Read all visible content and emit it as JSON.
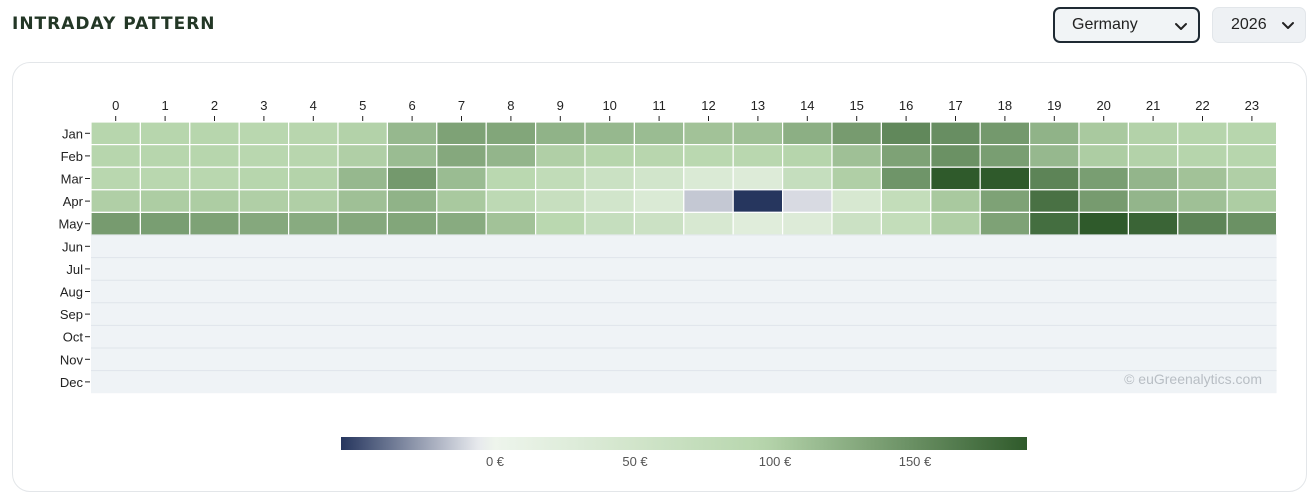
{
  "header": {
    "title": "INTRADAY PATTERN",
    "country_value": "Germany",
    "year_value": "2026"
  },
  "watermark": "© euGreenalytics.com",
  "icons": {
    "dropdown": "chevron-down-icon"
  },
  "colors": {
    "title": "#233726",
    "empty_cell": "#eff3f6",
    "grid_line": "#dfe5ea",
    "negative_low": "#26365e",
    "negative_high": "#ffffff",
    "positive_low": "#eef5ec",
    "positive_mid": "#b7d6ad",
    "positive_high": "#2f5a2b"
  },
  "chart_data": {
    "type": "heatmap",
    "x": [
      0,
      1,
      2,
      3,
      4,
      5,
      6,
      7,
      8,
      9,
      10,
      11,
      12,
      13,
      14,
      15,
      16,
      17,
      18,
      19,
      20,
      21,
      22,
      23
    ],
    "y": [
      "Jan",
      "Feb",
      "Mar",
      "Apr",
      "May",
      "Jun",
      "Jul",
      "Aug",
      "Sep",
      "Oct",
      "Nov",
      "Dec"
    ],
    "values": [
      [
        95,
        95,
        95,
        92,
        94,
        98,
        118,
        135,
        132,
        122,
        118,
        115,
        110,
        112,
        125,
        140,
        155,
        150,
        142,
        122,
        105,
        98,
        96,
        95
      ],
      [
        95,
        95,
        95,
        92,
        94,
        100,
        115,
        130,
        120,
        100,
        96,
        94,
        90,
        92,
        96,
        112,
        135,
        148,
        138,
        118,
        102,
        98,
        96,
        95
      ],
      [
        92,
        92,
        92,
        95,
        97,
        118,
        142,
        115,
        90,
        78,
        62,
        50,
        35,
        30,
        70,
        100,
        145,
        195,
        190,
        158,
        138,
        120,
        110,
        100
      ],
      [
        100,
        102,
        102,
        100,
        100,
        112,
        122,
        105,
        85,
        68,
        50,
        35,
        -15,
        -68,
        -10,
        40,
        75,
        105,
        135,
        172,
        140,
        120,
        112,
        102
      ],
      [
        140,
        138,
        135,
        130,
        128,
        130,
        132,
        128,
        110,
        90,
        70,
        60,
        40,
        25,
        30,
        60,
        75,
        100,
        135,
        175,
        190,
        182,
        158,
        148
      ],
      [
        null,
        null,
        null,
        null,
        null,
        null,
        null,
        null,
        null,
        null,
        null,
        null,
        null,
        null,
        null,
        null,
        null,
        null,
        null,
        null,
        null,
        null,
        null,
        null
      ],
      [
        null,
        null,
        null,
        null,
        null,
        null,
        null,
        null,
        null,
        null,
        null,
        null,
        null,
        null,
        null,
        null,
        null,
        null,
        null,
        null,
        null,
        null,
        null,
        null
      ],
      [
        null,
        null,
        null,
        null,
        null,
        null,
        null,
        null,
        null,
        null,
        null,
        null,
        null,
        null,
        null,
        null,
        null,
        null,
        null,
        null,
        null,
        null,
        null,
        null
      ],
      [
        null,
        null,
        null,
        null,
        null,
        null,
        null,
        null,
        null,
        null,
        null,
        null,
        null,
        null,
        null,
        null,
        null,
        null,
        null,
        null,
        null,
        null,
        null,
        null
      ],
      [
        null,
        null,
        null,
        null,
        null,
        null,
        null,
        null,
        null,
        null,
        null,
        null,
        null,
        null,
        null,
        null,
        null,
        null,
        null,
        null,
        null,
        null,
        null,
        null
      ],
      [
        null,
        null,
        null,
        null,
        null,
        null,
        null,
        null,
        null,
        null,
        null,
        null,
        null,
        null,
        null,
        null,
        null,
        null,
        null,
        null,
        null,
        null,
        null,
        null
      ],
      [
        null,
        null,
        null,
        null,
        null,
        null,
        null,
        null,
        null,
        null,
        null,
        null,
        null,
        null,
        null,
        null,
        null,
        null,
        null,
        null,
        null,
        null,
        null,
        null
      ]
    ],
    "colorbar": {
      "range": [
        -55,
        190
      ],
      "ticks": [
        0,
        50,
        100,
        150
      ],
      "tick_labels": [
        "0 €",
        "50 €",
        "100 €",
        "150 €"
      ]
    }
  }
}
